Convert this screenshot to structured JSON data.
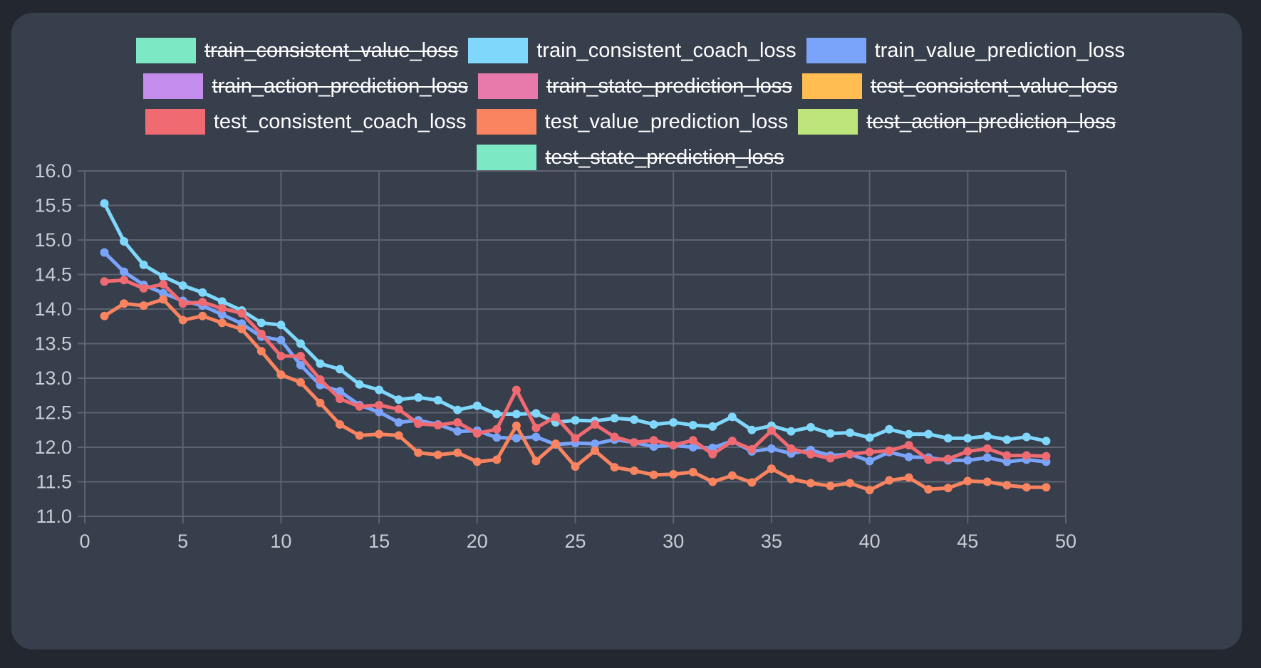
{
  "chart_data": {
    "type": "line",
    "legend_position": "top",
    "grid": true,
    "xlim": [
      0,
      50
    ],
    "ylim": [
      11.0,
      16.0
    ],
    "x_ticks": [
      "0",
      "5",
      "10",
      "15",
      "20",
      "25",
      "30",
      "35",
      "40",
      "45",
      "50"
    ],
    "y_ticks": [
      "16.0",
      "15.5",
      "15.0",
      "14.5",
      "14.0",
      "13.5",
      "13.0",
      "12.5",
      "12.0",
      "11.5",
      "11.0"
    ],
    "x": [
      1,
      2,
      3,
      4,
      5,
      6,
      7,
      8,
      9,
      10,
      11,
      12,
      13,
      14,
      15,
      16,
      17,
      18,
      19,
      20,
      21,
      22,
      23,
      24,
      25,
      26,
      27,
      28,
      29,
      30,
      31,
      32,
      33,
      34,
      35,
      36,
      37,
      38,
      39,
      40,
      41,
      42,
      43,
      44,
      45,
      46,
      47,
      48,
      49
    ],
    "legend": [
      {
        "name": "train_consistent_value_loss",
        "color": "#7ce8c4",
        "hidden": true
      },
      {
        "name": "train_consistent_coach_loss",
        "color": "#7fd8fb",
        "hidden": false
      },
      {
        "name": "train_value_prediction_loss",
        "color": "#7aa3fa",
        "hidden": false
      },
      {
        "name": "train_action_prediction_loss",
        "color": "#c38ced",
        "hidden": true
      },
      {
        "name": "train_state_prediction_loss",
        "color": "#e77aab",
        "hidden": true
      },
      {
        "name": "test_consistent_value_loss",
        "color": "#ffbd52",
        "hidden": true
      },
      {
        "name": "test_consistent_coach_loss",
        "color": "#f06a72",
        "hidden": false
      },
      {
        "name": "test_value_prediction_loss",
        "color": "#f9845f",
        "hidden": false
      },
      {
        "name": "test_action_prediction_loss",
        "color": "#bde57c",
        "hidden": true
      },
      {
        "name": "test_state_prediction_loss",
        "color": "#7ce8c4",
        "hidden": true
      }
    ],
    "series": [
      {
        "name": "train_consistent_coach_loss",
        "color": "#7fd8fb",
        "values": [
          15.53,
          14.98,
          14.64,
          14.47,
          14.34,
          14.24,
          14.11,
          13.98,
          13.8,
          13.77,
          13.5,
          13.21,
          13.13,
          12.91,
          12.83,
          12.69,
          12.72,
          12.68,
          12.54,
          12.6,
          12.48,
          12.48,
          12.49,
          12.36,
          12.39,
          12.38,
          12.42,
          12.4,
          12.33,
          12.36,
          12.32,
          12.3,
          12.44,
          12.25,
          12.31,
          12.23,
          12.29,
          12.2,
          12.21,
          12.14,
          12.26,
          12.19,
          12.19,
          12.13,
          12.13,
          12.16,
          12.11,
          12.15,
          12.09
        ]
      },
      {
        "name": "train_value_prediction_loss",
        "color": "#7aa3fa",
        "values": [
          14.82,
          14.54,
          14.35,
          14.23,
          14.12,
          14.05,
          13.92,
          13.79,
          13.6,
          13.55,
          13.19,
          12.9,
          12.81,
          12.61,
          12.51,
          12.36,
          12.39,
          12.33,
          12.23,
          12.24,
          12.14,
          12.13,
          12.15,
          12.04,
          12.06,
          12.05,
          12.11,
          12.07,
          12.01,
          12.03,
          12.0,
          11.99,
          12.09,
          11.94,
          11.98,
          11.91,
          11.96,
          11.88,
          11.9,
          11.8,
          11.93,
          11.86,
          11.85,
          11.81,
          11.81,
          11.85,
          11.79,
          11.82,
          11.79
        ]
      },
      {
        "name": "test_consistent_coach_loss",
        "color": "#f06a72",
        "values": [
          14.4,
          14.42,
          14.3,
          14.36,
          14.08,
          14.1,
          14.01,
          13.94,
          13.64,
          13.32,
          13.32,
          12.98,
          12.7,
          12.59,
          12.61,
          12.55,
          12.34,
          12.32,
          12.36,
          12.2,
          12.26,
          12.83,
          12.28,
          12.44,
          12.13,
          12.33,
          12.15,
          12.07,
          12.1,
          12.03,
          12.1,
          11.9,
          12.09,
          11.97,
          12.24,
          11.98,
          11.9,
          11.84,
          11.9,
          11.93,
          11.95,
          12.03,
          11.82,
          11.83,
          11.94,
          11.98,
          11.88,
          11.88,
          11.87
        ]
      },
      {
        "name": "test_value_prediction_loss",
        "color": "#f9845f",
        "values": [
          13.9,
          14.08,
          14.05,
          14.14,
          13.84,
          13.9,
          13.8,
          13.71,
          13.39,
          13.05,
          12.94,
          12.64,
          12.33,
          12.17,
          12.19,
          12.17,
          11.92,
          11.89,
          11.92,
          11.79,
          11.82,
          12.31,
          11.8,
          12.05,
          11.72,
          11.95,
          11.71,
          11.66,
          11.6,
          11.61,
          11.64,
          11.5,
          11.59,
          11.49,
          11.69,
          11.54,
          11.48,
          11.44,
          11.48,
          11.38,
          11.52,
          11.56,
          11.39,
          11.41,
          11.51,
          11.5,
          11.45,
          11.42,
          11.42
        ]
      }
    ]
  }
}
